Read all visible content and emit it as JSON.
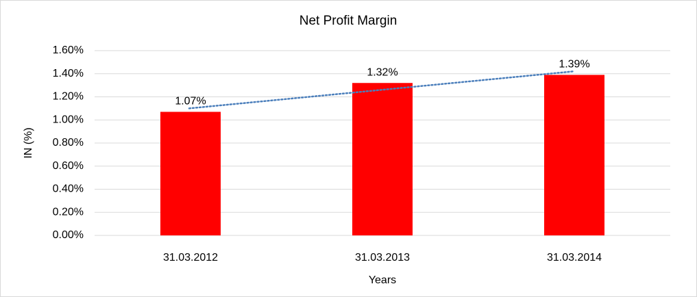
{
  "chart_data": {
    "type": "bar",
    "title": "Net Profit Margin",
    "x_label": "Years",
    "y_label": "IN (%)",
    "categories": [
      "31.03.2012",
      "31.03.2013",
      "31.03.2014"
    ],
    "values": [
      1.07,
      1.32,
      1.39
    ],
    "value_labels": [
      "1.07%",
      "1.32%",
      "1.39%"
    ],
    "color": "#ff0000",
    "ylim": [
      0,
      1.6
    ],
    "yticks": [
      {
        "value": 0,
        "label": "0.00%"
      },
      {
        "value": 0.2,
        "label": "0.20%"
      },
      {
        "value": 0.4,
        "label": "0.40%"
      },
      {
        "value": 0.6,
        "label": "0.60%"
      },
      {
        "value": 0.8,
        "label": "0.80%"
      },
      {
        "value": 1.0,
        "label": "1.00%"
      },
      {
        "value": 1.2,
        "label": "1.20%"
      },
      {
        "value": 1.4,
        "label": "1.40%"
      },
      {
        "value": 1.6,
        "label": "1.60%"
      }
    ],
    "grid": true,
    "trendline": "linear",
    "trendline_color": "#4a7ebb"
  }
}
